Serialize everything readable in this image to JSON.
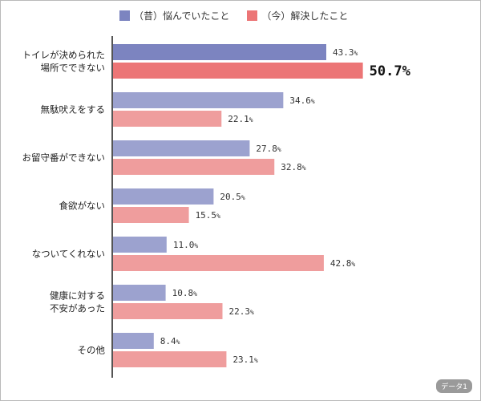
{
  "legend": {
    "past": {
      "label": "（昔）悩んでいたこと",
      "color": "#8d94c8"
    },
    "now": {
      "label": "（今）解決したこと",
      "color": "#ee8a8a"
    }
  },
  "badge": "データ1",
  "chart_data": {
    "type": "bar",
    "orientation": "horizontal",
    "categories": [
      [
        "トイレが決められた",
        "場所でできない"
      ],
      [
        "無駄吠えをする"
      ],
      [
        "お留守番ができない"
      ],
      [
        "食欲がない"
      ],
      [
        "なついてくれない"
      ],
      [
        "健康に対する",
        "不安があった"
      ],
      [
        "その他"
      ]
    ],
    "series": [
      {
        "name": "（昔）悩んでいたこと",
        "values": [
          43.3,
          34.6,
          27.8,
          20.5,
          11.0,
          10.8,
          8.4
        ],
        "colors": [
          "#7c84c0",
          "#9ca2cf",
          "#9ca2cf",
          "#9ca2cf",
          "#9ca2cf",
          "#9ca2cf",
          "#9ca2cf"
        ]
      },
      {
        "name": "（今）解決したこと",
        "values": [
          50.7,
          22.1,
          32.8,
          15.5,
          42.8,
          22.3,
          23.1
        ],
        "colors": [
          "#ec7576",
          "#ef9d9d",
          "#ef9d9d",
          "#ef9d9d",
          "#ef9d9d",
          "#ef9d9d",
          "#ef9d9d"
        ]
      }
    ],
    "highlight": {
      "series": 1,
      "index": 0
    },
    "value_suffix": "%",
    "xlim": [
      0,
      60
    ]
  }
}
